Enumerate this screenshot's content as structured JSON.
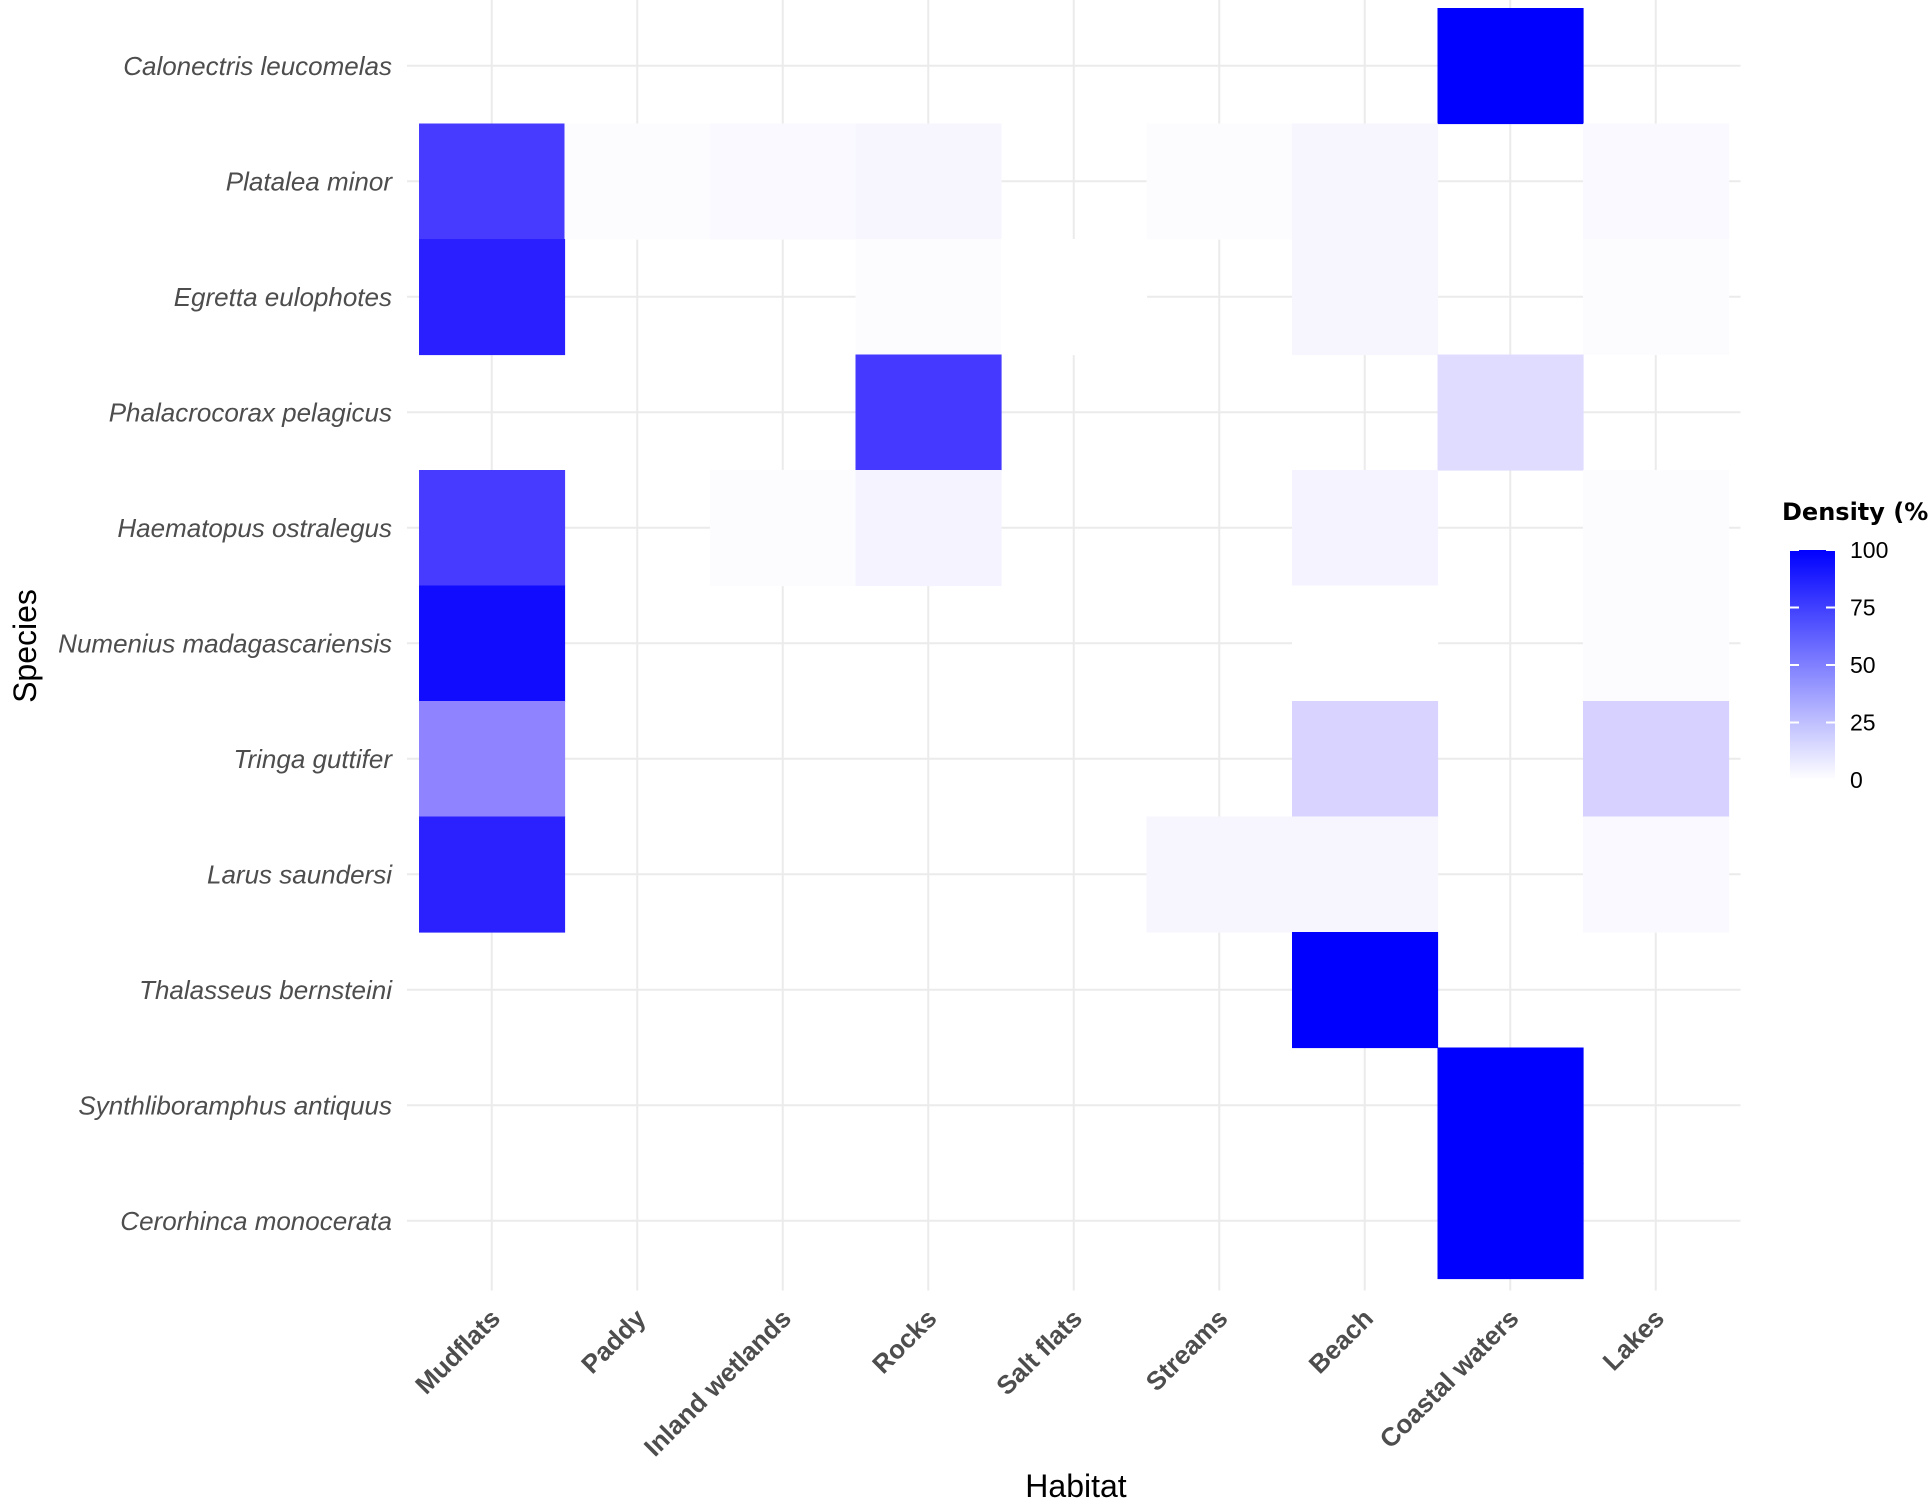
{
  "chart_data": {
    "type": "heatmap",
    "title": "",
    "xlabel": "Habitat",
    "ylabel": "Species",
    "x_categories": [
      "Mudflats",
      "Paddy",
      "Inland wetlands",
      "Rocks",
      "Salt flats",
      "Streams",
      "Beach",
      "Coastal waters",
      "Lakes"
    ],
    "y_categories": [
      "Calonectris leucomelas",
      "Platalea minor",
      "Egretta eulophotes",
      "Phalacrocorax pelagicus",
      "Haematopus ostralegus",
      "Numenius madagascariensis",
      "Tringa guttifer",
      "Larus saundersi",
      "Thalasseus bernsteini",
      "Synthliboramphus antiquus",
      "Cerorhinca monocerata"
    ],
    "values": [
      [
        null,
        null,
        null,
        null,
        null,
        null,
        null,
        100,
        null
      ],
      [
        72,
        1,
        2,
        3,
        null,
        1,
        3,
        null,
        2
      ],
      [
        84,
        null,
        null,
        1,
        0,
        null,
        3,
        null,
        1
      ],
      [
        null,
        null,
        null,
        73,
        null,
        null,
        null,
        12,
        null
      ],
      [
        72,
        null,
        1,
        4,
        null,
        null,
        4,
        null,
        1
      ],
      [
        93,
        null,
        null,
        null,
        null,
        null,
        0,
        null,
        1
      ],
      [
        44,
        null,
        null,
        null,
        null,
        null,
        15,
        null,
        16
      ],
      [
        83,
        null,
        null,
        null,
        null,
        3,
        3,
        null,
        2
      ],
      [
        null,
        null,
        null,
        null,
        null,
        null,
        100,
        null,
        null
      ],
      [
        null,
        null,
        null,
        null,
        null,
        null,
        null,
        100,
        null
      ],
      [
        null,
        null,
        null,
        null,
        null,
        null,
        null,
        100,
        null
      ]
    ],
    "legend": {
      "title": "Density (%)",
      "ticks": [
        "100",
        "75",
        "50",
        "25",
        "0"
      ],
      "range": [
        0,
        100
      ],
      "low_color": "#ffffff",
      "high_color": "#0000ff",
      "placement": "right"
    },
    "grid": true
  }
}
